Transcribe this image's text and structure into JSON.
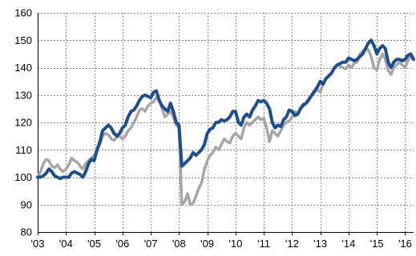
{
  "chart_data": {
    "type": "line",
    "title": "",
    "xlabel": "",
    "ylabel": "",
    "ylim": [
      80,
      160
    ],
    "yticks": [
      80,
      90,
      100,
      110,
      120,
      130,
      140,
      150,
      160
    ],
    "ytick_labels": [
      "80",
      "90",
      "100",
      "110",
      "120",
      "130",
      "140",
      "150",
      "160"
    ],
    "xlim": [
      2003.0,
      2016.3
    ],
    "xticks": [
      2003,
      2004,
      2005,
      2006,
      2007,
      2008,
      2009,
      2010,
      2011,
      2012,
      2013,
      2014,
      2015,
      2016
    ],
    "xtick_labels": [
      "'03",
      "'04",
      "'05",
      "'06",
      "'07",
      "'08",
      "'09",
      "'10",
      "'11",
      "'12",
      "'13",
      "'14",
      "'15",
      "'16"
    ],
    "grid": true,
    "legend": "none",
    "series": [
      {
        "color": "#a6a6a6",
        "x": [
          2003.0,
          2003.1,
          2003.2,
          2003.3,
          2003.4,
          2003.5,
          2003.6,
          2003.7,
          2003.8,
          2003.9,
          2004.0,
          2004.1,
          2004.2,
          2004.3,
          2004.4,
          2004.5,
          2004.6,
          2004.7,
          2004.8,
          2004.9,
          2005.0,
          2005.1,
          2005.2,
          2005.3,
          2005.4,
          2005.5,
          2005.6,
          2005.7,
          2005.8,
          2005.9,
          2006.0,
          2006.1,
          2006.2,
          2006.3,
          2006.4,
          2006.5,
          2006.6,
          2006.7,
          2006.8,
          2006.9,
          2007.0,
          2007.1,
          2007.2,
          2007.3,
          2007.4,
          2007.5,
          2007.6,
          2007.7,
          2007.8,
          2007.9,
          2008.0,
          2008.1,
          2008.2,
          2008.3,
          2008.4,
          2008.5,
          2008.6,
          2008.7,
          2008.8,
          2008.9,
          2009.0,
          2009.1,
          2009.2,
          2009.3,
          2009.4,
          2009.5,
          2009.6,
          2009.7,
          2009.8,
          2009.9,
          2010.0,
          2010.1,
          2010.2,
          2010.3,
          2010.4,
          2010.5,
          2010.6,
          2010.7,
          2010.8,
          2010.9,
          2011.0,
          2011.1,
          2011.2,
          2011.3,
          2011.4,
          2011.5,
          2011.6,
          2011.7,
          2011.8,
          2011.9,
          2012.0,
          2012.1,
          2012.2,
          2012.3,
          2012.4,
          2012.5,
          2012.6,
          2012.7,
          2012.8,
          2012.9,
          2013.0,
          2013.1,
          2013.2,
          2013.3,
          2013.4,
          2013.5,
          2013.6,
          2013.7,
          2013.8,
          2013.9,
          2014.0,
          2014.1,
          2014.2,
          2014.3,
          2014.4,
          2014.5,
          2014.6,
          2014.7,
          2014.8,
          2014.9,
          2015.0,
          2015.1,
          2015.2,
          2015.3,
          2015.4,
          2015.5,
          2015.6,
          2015.7,
          2015.8,
          2015.9,
          2016.0,
          2016.1,
          2016.2,
          2016.3
        ],
        "y": [
          100.0,
          102.0,
          105.0,
          106.5,
          106.0,
          104.0,
          103.5,
          104.5,
          103.0,
          102.0,
          103.0,
          104.5,
          107.0,
          106.0,
          105.5,
          104.0,
          103.0,
          105.0,
          106.0,
          107.0,
          108.0,
          110.0,
          112.0,
          115.0,
          116.0,
          115.5,
          114.0,
          113.5,
          114.5,
          115.0,
          114.0,
          115.0,
          117.0,
          118.0,
          120.0,
          122.0,
          124.5,
          125.0,
          124.0,
          126.0,
          127.0,
          127.5,
          129.0,
          128.5,
          125.0,
          122.0,
          123.0,
          124.0,
          122.0,
          119.0,
          118.0,
          90.0,
          91.0,
          94.0,
          90.0,
          90.5,
          93.0,
          96.0,
          98.0,
          103.0,
          106.0,
          108.0,
          109.0,
          111.0,
          110.0,
          112.0,
          114.0,
          113.0,
          112.5,
          115.0,
          116.0,
          115.0,
          114.0,
          118.0,
          120.0,
          119.0,
          120.0,
          121.0,
          122.0,
          121.0,
          121.5,
          118.0,
          113.0,
          117.0,
          116.0,
          115.0,
          117.0,
          119.0,
          120.0,
          120.5,
          122.0,
          124.0,
          123.0,
          125.0,
          126.0,
          127.0,
          128.0,
          130.0,
          131.0,
          132.0,
          131.0,
          134.0,
          136.0,
          137.0,
          138.0,
          140.0,
          141.0,
          140.5,
          140.0,
          139.5,
          141.0,
          140.0,
          141.5,
          142.0,
          145.0,
          146.0,
          147.0,
          146.5,
          144.0,
          140.0,
          139.0,
          143.0,
          145.0,
          143.0,
          139.0,
          137.5,
          140.0,
          141.0,
          142.0,
          141.0,
          140.0,
          142.5,
          144.0,
          143.0
        ]
      },
      {
        "color": "#1f4e8c",
        "x": [
          2003.0,
          2003.1,
          2003.2,
          2003.3,
          2003.4,
          2003.5,
          2003.6,
          2003.7,
          2003.8,
          2003.9,
          2004.0,
          2004.1,
          2004.2,
          2004.3,
          2004.4,
          2004.5,
          2004.6,
          2004.7,
          2004.8,
          2004.9,
          2005.0,
          2005.1,
          2005.2,
          2005.3,
          2005.4,
          2005.5,
          2005.6,
          2005.7,
          2005.8,
          2005.9,
          2006.0,
          2006.1,
          2006.2,
          2006.3,
          2006.4,
          2006.5,
          2006.6,
          2006.7,
          2006.8,
          2006.9,
          2007.0,
          2007.1,
          2007.2,
          2007.3,
          2007.4,
          2007.5,
          2007.6,
          2007.7,
          2007.8,
          2007.9,
          2008.0,
          2008.1,
          2008.2,
          2008.3,
          2008.4,
          2008.5,
          2008.6,
          2008.7,
          2008.8,
          2008.9,
          2009.0,
          2009.1,
          2009.2,
          2009.3,
          2009.4,
          2009.5,
          2009.6,
          2009.7,
          2009.8,
          2009.9,
          2010.0,
          2010.1,
          2010.2,
          2010.3,
          2010.4,
          2010.5,
          2010.6,
          2010.7,
          2010.8,
          2010.9,
          2011.0,
          2011.1,
          2011.2,
          2011.3,
          2011.4,
          2011.5,
          2011.6,
          2011.7,
          2011.8,
          2011.9,
          2012.0,
          2012.1,
          2012.2,
          2012.3,
          2012.4,
          2012.5,
          2012.6,
          2012.7,
          2012.8,
          2012.9,
          2013.0,
          2013.1,
          2013.2,
          2013.3,
          2013.4,
          2013.5,
          2013.6,
          2013.7,
          2013.8,
          2013.9,
          2014.0,
          2014.1,
          2014.2,
          2014.3,
          2014.4,
          2014.5,
          2014.6,
          2014.7,
          2014.8,
          2014.9,
          2015.0,
          2015.1,
          2015.2,
          2015.3,
          2015.4,
          2015.5,
          2015.6,
          2015.7,
          2015.8,
          2015.9,
          2016.0,
          2016.1,
          2016.2,
          2016.3
        ],
        "y": [
          100.0,
          100.0,
          100.5,
          101.5,
          103.0,
          102.0,
          100.5,
          100.0,
          99.5,
          100.0,
          100.0,
          100.0,
          101.5,
          102.0,
          101.5,
          101.0,
          100.0,
          102.0,
          105.0,
          106.5,
          106.0,
          110.0,
          113.0,
          117.0,
          118.0,
          119.0,
          118.0,
          116.0,
          115.0,
          116.0,
          118.0,
          119.0,
          122.0,
          124.0,
          124.5,
          126.0,
          128.0,
          129.5,
          130.0,
          129.5,
          129.0,
          131.0,
          131.5,
          128.0,
          126.0,
          125.0,
          124.0,
          127.0,
          124.0,
          120.0,
          119.0,
          104.0,
          105.0,
          106.0,
          107.0,
          109.0,
          108.0,
          109.0,
          110.0,
          112.0,
          116.0,
          117.5,
          118.0,
          120.0,
          120.0,
          121.0,
          120.5,
          121.0,
          122.0,
          124.0,
          124.0,
          120.0,
          119.0,
          122.0,
          123.0,
          122.0,
          124.5,
          126.0,
          128.0,
          127.5,
          128.0,
          127.0,
          125.0,
          120.0,
          118.0,
          119.0,
          118.5,
          121.0,
          122.0,
          124.5,
          124.0,
          122.5,
          123.0,
          125.0,
          126.5,
          127.0,
          128.5,
          130.0,
          131.5,
          133.0,
          135.0,
          134.0,
          136.0,
          137.0,
          138.0,
          140.0,
          141.0,
          141.5,
          142.0,
          142.0,
          143.5,
          143.0,
          142.5,
          143.0,
          144.0,
          145.0,
          147.0,
          149.0,
          150.0,
          148.0,
          145.0,
          147.0,
          148.0,
          147.0,
          142.0,
          140.0,
          142.0,
          143.0,
          143.0,
          142.5,
          143.0,
          144.5,
          145.0,
          143.0
        ]
      }
    ]
  }
}
